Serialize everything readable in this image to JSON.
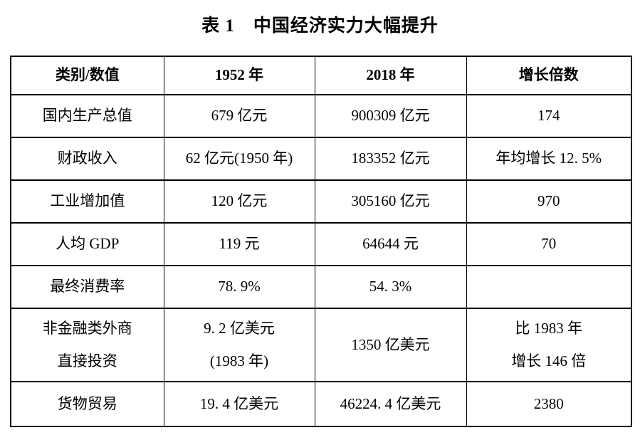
{
  "title": "表 1　中国经济实力大幅提升",
  "colors": {
    "text": "#000000",
    "background": "#ffffff",
    "border": "#000000"
  },
  "table": {
    "headers": [
      "类别/数值",
      "1952 年",
      "2018 年",
      "增长倍数"
    ],
    "rows": [
      {
        "cells": [
          "国内生产总值",
          "679 亿元",
          "900309 亿元",
          "174"
        ]
      },
      {
        "cells": [
          "财政收入",
          "62 亿元(1950 年)",
          "183352 亿元",
          "年均增长 12. 5%"
        ]
      },
      {
        "cells": [
          "工业增加值",
          "120 亿元",
          "305160 亿元",
          "970"
        ]
      },
      {
        "cells": [
          "人均 GDP",
          "119 元",
          "64644 元",
          "70"
        ]
      },
      {
        "cells": [
          "最终消费率",
          "78. 9%",
          "54. 3%",
          ""
        ]
      },
      {
        "cells": [
          "非金融类外商\n直接投资",
          "9. 2 亿美元\n(1983 年)",
          "1350 亿美元",
          "比 1983 年\n增长 146 倍"
        ]
      },
      {
        "cells": [
          "货物贸易",
          "19. 4 亿美元",
          "46224. 4 亿美元",
          "2380"
        ]
      }
    ]
  }
}
